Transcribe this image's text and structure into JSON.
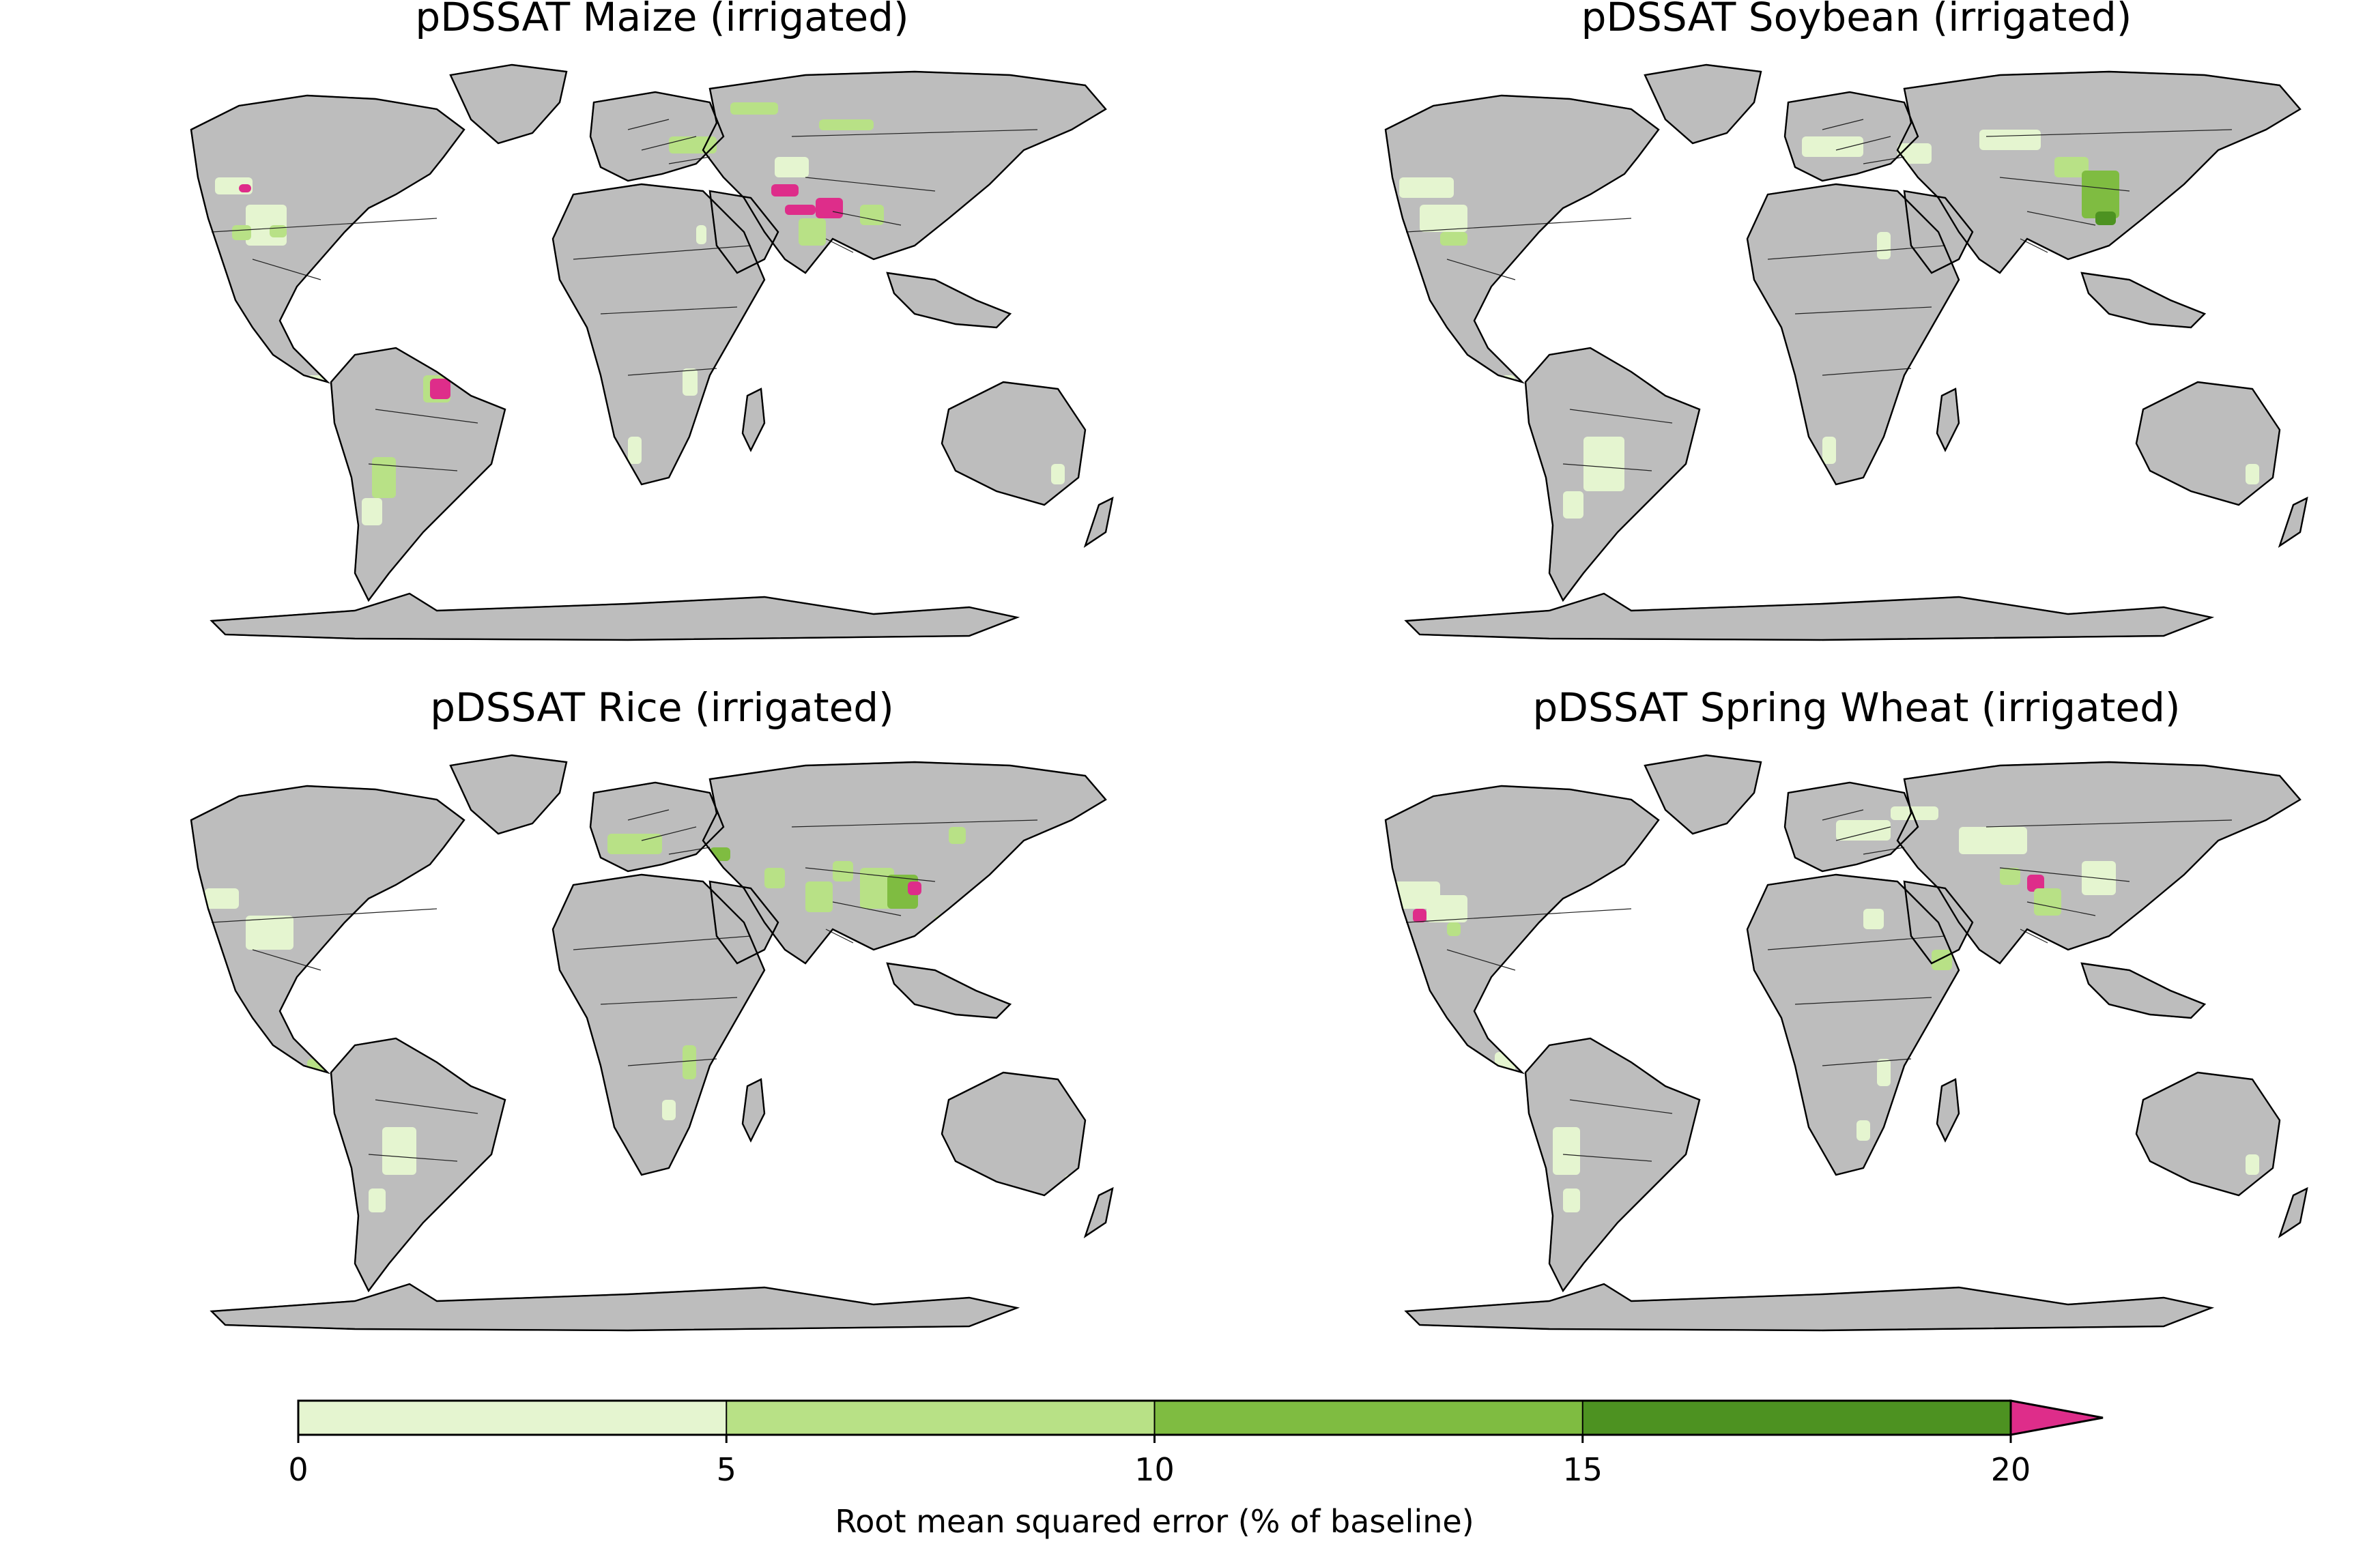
{
  "panels": [
    {
      "title": "pDSSAT Maize (irrigated)"
    },
    {
      "title": "pDSSAT Soybean (irrigated)"
    },
    {
      "title": "pDSSAT Rice (irrigated)"
    },
    {
      "title": "pDSSAT Spring Wheat (irrigated)"
    }
  ],
  "colorbar": {
    "label": "Root mean squared error (% of baseline)",
    "ticks": [
      "0",
      "5",
      "10",
      "15",
      "20"
    ],
    "bins": [
      {
        "from": 0,
        "to": 5,
        "color": "#e5f5d0"
      },
      {
        "from": 5,
        "to": 10,
        "color": "#b8e186"
      },
      {
        "from": 10,
        "to": 15,
        "color": "#7fbc41"
      },
      {
        "from": 15,
        "to": 20,
        "color": "#4d9221"
      }
    ],
    "over_color": "#de2d8a",
    "extend": "max"
  },
  "colors": {
    "land_no_data": "#bdbdbd",
    "coastline": "#000000",
    "ocean": "#ffffff"
  }
}
